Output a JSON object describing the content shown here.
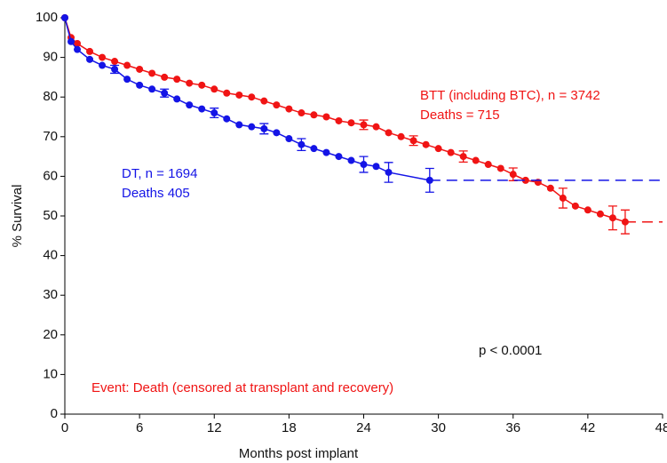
{
  "chart_data": {
    "type": "line",
    "xlabel": "Months post implant",
    "ylabel": "% Survival",
    "xlim": [
      0,
      48
    ],
    "xticks": [
      0,
      6,
      12,
      18,
      24,
      30,
      36,
      42,
      48
    ],
    "ylim": [
      0,
      100
    ],
    "yticks": [
      0,
      10,
      20,
      30,
      40,
      50,
      60,
      70,
      80,
      90,
      100
    ],
    "series": [
      {
        "name": "BTT (including BTC), n = 3742",
        "note": "Deaths = 715",
        "color": "#f01414",
        "x": [
          0,
          0.5,
          1,
          2,
          3,
          4,
          5,
          6,
          7,
          8,
          9,
          10,
          11,
          12,
          13,
          14,
          15,
          16,
          17,
          18,
          19,
          20,
          21,
          22,
          23,
          24,
          25,
          26,
          27,
          28,
          29,
          30,
          31,
          32,
          33,
          34,
          35,
          36,
          37,
          38,
          39,
          40,
          41,
          42,
          43,
          44,
          45
        ],
        "values": [
          100,
          95,
          93.5,
          91.5,
          90,
          89,
          88,
          87,
          86,
          85,
          84.5,
          83.5,
          83,
          82,
          81,
          80.5,
          80,
          79,
          78,
          77,
          76,
          75.5,
          75,
          74,
          73.5,
          73,
          72.5,
          71,
          70,
          69,
          68,
          67,
          66,
          65,
          64,
          63,
          62,
          60.5,
          59,
          58.5,
          57,
          54.5,
          52.5,
          51.5,
          50.5,
          49.5,
          48.5
        ],
        "errors": [
          null,
          null,
          null,
          null,
          null,
          null,
          null,
          null,
          null,
          null,
          null,
          null,
          null,
          null,
          null,
          null,
          null,
          null,
          null,
          null,
          null,
          null,
          null,
          null,
          null,
          1.2,
          null,
          null,
          null,
          1.2,
          null,
          null,
          null,
          1.4,
          null,
          null,
          null,
          1.6,
          null,
          null,
          null,
          2.5,
          null,
          null,
          null,
          3,
          3
        ]
      },
      {
        "name": "DT, n = 1694",
        "note": "Deaths  405",
        "color": "#1414e6",
        "x": [
          0,
          0.5,
          1,
          2,
          3,
          4,
          5,
          6,
          7,
          8,
          9,
          10,
          11,
          12,
          13,
          14,
          15,
          16,
          17,
          18,
          19,
          20,
          21,
          22,
          23,
          24,
          25,
          26,
          29.3
        ],
        "values": [
          100,
          94,
          92,
          89.5,
          88,
          87,
          84.5,
          83,
          82,
          81,
          79.5,
          78,
          77,
          76,
          74.5,
          73,
          72.5,
          72,
          71,
          69.5,
          68,
          67,
          66,
          65,
          64,
          63,
          62.5,
          61,
          59
        ],
        "errors": [
          null,
          null,
          null,
          null,
          null,
          1,
          null,
          null,
          null,
          1,
          null,
          null,
          null,
          1.2,
          null,
          null,
          null,
          1.3,
          null,
          null,
          1.5,
          null,
          null,
          null,
          null,
          2,
          null,
          2.5,
          3
        ]
      }
    ],
    "annotations": [
      "p < 0.0001",
      "Event:  Death (censored at transplant and recovery)"
    ]
  }
}
